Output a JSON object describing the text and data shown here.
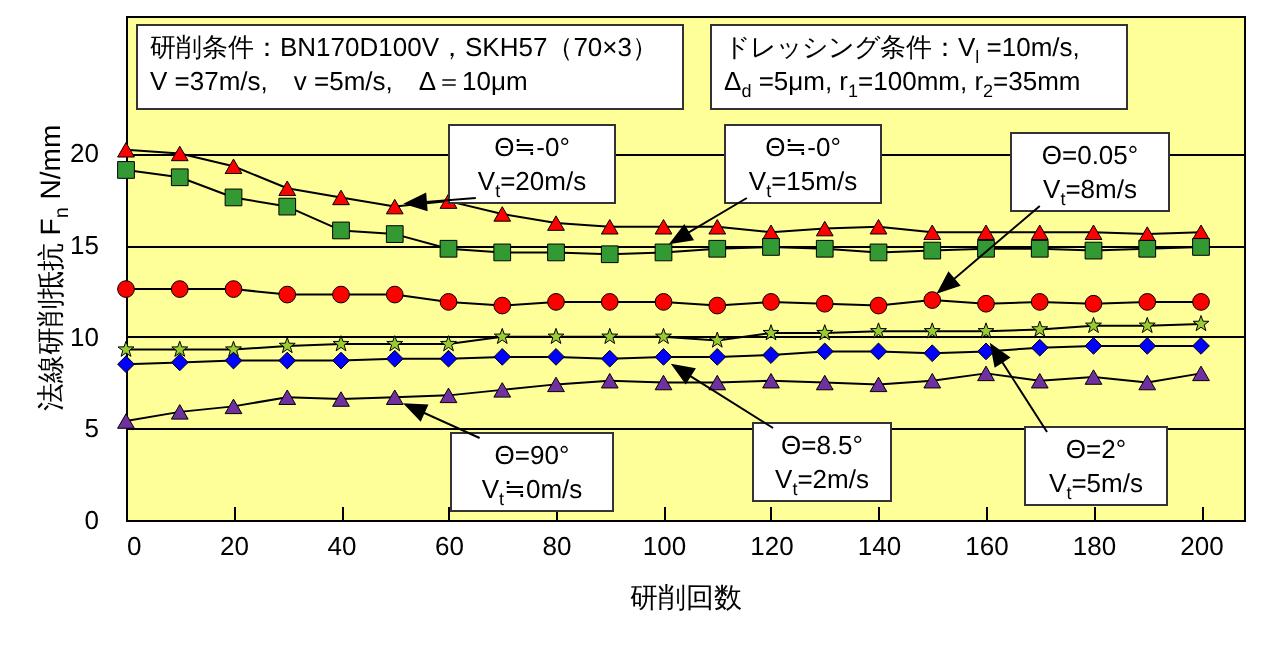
{
  "chart_data": {
    "type": "line",
    "x": [
      0,
      10,
      20,
      30,
      40,
      50,
      60,
      70,
      80,
      90,
      100,
      110,
      120,
      130,
      140,
      150,
      160,
      170,
      180,
      190,
      200
    ],
    "series": [
      {
        "color": "#ff0000",
        "marker": "triangle",
        "values": [
          20.2,
          20.0,
          19.3,
          18.1,
          17.6,
          17.1,
          17.4,
          16.7,
          16.2,
          16.0,
          16.0,
          16.0,
          15.7,
          15.9,
          16.0,
          15.7,
          15.7,
          15.7,
          15.7,
          15.6,
          15.7
        ]
      },
      {
        "color": "#339933",
        "marker": "square",
        "values": [
          19.1,
          18.7,
          17.6,
          17.1,
          15.8,
          15.6,
          14.8,
          14.6,
          14.6,
          14.5,
          14.6,
          14.8,
          14.9,
          14.8,
          14.6,
          14.7,
          14.8,
          14.8,
          14.7,
          14.8,
          14.9
        ]
      },
      {
        "color": "#ff0000",
        "marker": "circle",
        "values": [
          12.6,
          12.6,
          12.6,
          12.3,
          12.3,
          12.3,
          11.9,
          11.7,
          11.9,
          11.9,
          11.9,
          11.7,
          11.9,
          11.8,
          11.7,
          12.0,
          11.8,
          11.9,
          11.8,
          11.9,
          11.9
        ]
      },
      {
        "color": "#99cc33",
        "marker": "star",
        "values": [
          9.3,
          9.3,
          9.3,
          9.5,
          9.6,
          9.6,
          9.6,
          10.0,
          10.0,
          10.0,
          10.0,
          9.8,
          10.2,
          10.2,
          10.3,
          10.3,
          10.3,
          10.4,
          10.6,
          10.6,
          10.7
        ]
      },
      {
        "color": "#0000ff",
        "marker": "diamond",
        "values": [
          8.5,
          8.6,
          8.7,
          8.7,
          8.7,
          8.8,
          8.8,
          8.9,
          8.9,
          8.8,
          8.9,
          8.9,
          9.0,
          9.2,
          9.2,
          9.1,
          9.2,
          9.4,
          9.5,
          9.5,
          9.5
        ]
      },
      {
        "color": "#7030a0",
        "marker": "triangle",
        "values": [
          5.4,
          5.9,
          6.2,
          6.7,
          6.6,
          6.7,
          6.8,
          7.1,
          7.4,
          7.6,
          7.5,
          7.5,
          7.6,
          7.5,
          7.4,
          7.6,
          8.0,
          7.6,
          7.8,
          7.5,
          8.0
        ]
      }
    ],
    "xlabel": "研削回数",
    "ylabel": "法線研削抵抗 F$_{n}$ N/mm",
    "xlim": [
      0,
      208
    ],
    "xticks": [
      0,
      20,
      40,
      60,
      80,
      100,
      120,
      140,
      160,
      180,
      200
    ],
    "ylim": [
      0,
      27.5
    ],
    "yticks": [
      0,
      5,
      10,
      15,
      20
    ],
    "grid": "y",
    "line_style": "solid",
    "annotations": [
      "研削条件：BN170D100V，SKH57（70×3）\nV =37m/s,　v =5m/s,　Δ＝10μm",
      "ドレッシング条件：V$_{l}$ =10m/s,\nΔ$_{d}$ =5μm,  r$_{1}$=100mm,  r$_{2}$=35mm",
      "Θ≒-0°\nV$_{t}$=20m/s",
      "Θ≒-0°\nV$_{t}$=15m/s",
      "Θ=0.05°\nV$_{t}$=8m/s",
      "Θ=90°\nV$_{t}$≒0m/s",
      "Θ=8.5°\nV$_{t}$=2m/s",
      "Θ=2°\nV$_{t}$=5m/s"
    ]
  }
}
